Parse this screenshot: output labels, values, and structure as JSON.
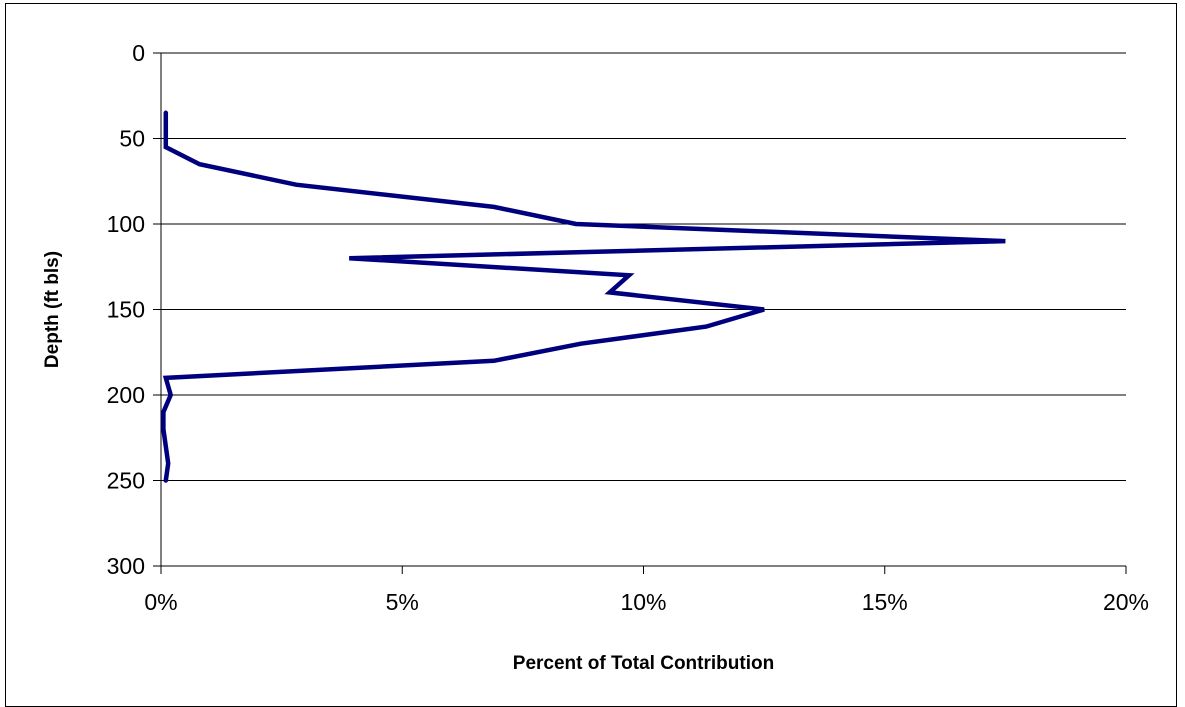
{
  "chart_data": {
    "type": "line",
    "title": "",
    "xlabel": "Percent of Total Contribution",
    "ylabel": "Depth (ft bls)",
    "xlim": [
      0,
      20
    ],
    "ylim": [
      0,
      300
    ],
    "y_inverted": true,
    "x_ticks": [
      0,
      5,
      10,
      15,
      20
    ],
    "x_tick_labels": [
      "0%",
      "5%",
      "10%",
      "15%",
      "20%"
    ],
    "y_ticks": [
      0,
      50,
      100,
      150,
      200,
      250,
      300
    ],
    "y_tick_labels": [
      "0",
      "50",
      "100",
      "150",
      "200",
      "250",
      "300"
    ],
    "grid": "horizontal",
    "legend": "none",
    "series": [
      {
        "color": "#00007F",
        "points": [
          {
            "x": 0.1,
            "y": 35
          },
          {
            "x": 0.1,
            "y": 55
          },
          {
            "x": 0.8,
            "y": 65
          },
          {
            "x": 2.8,
            "y": 77
          },
          {
            "x": 6.9,
            "y": 90
          },
          {
            "x": 8.6,
            "y": 100
          },
          {
            "x": 17.5,
            "y": 110
          },
          {
            "x": 3.9,
            "y": 120
          },
          {
            "x": 9.7,
            "y": 130
          },
          {
            "x": 9.3,
            "y": 140
          },
          {
            "x": 12.5,
            "y": 150
          },
          {
            "x": 11.3,
            "y": 160
          },
          {
            "x": 8.7,
            "y": 170
          },
          {
            "x": 6.9,
            "y": 180
          },
          {
            "x": 0.1,
            "y": 190
          },
          {
            "x": 0.2,
            "y": 200
          },
          {
            "x": 0.05,
            "y": 210
          },
          {
            "x": 0.05,
            "y": 220
          },
          {
            "x": 0.1,
            "y": 230
          },
          {
            "x": 0.15,
            "y": 240
          },
          {
            "x": 0.1,
            "y": 250
          }
        ]
      }
    ]
  }
}
